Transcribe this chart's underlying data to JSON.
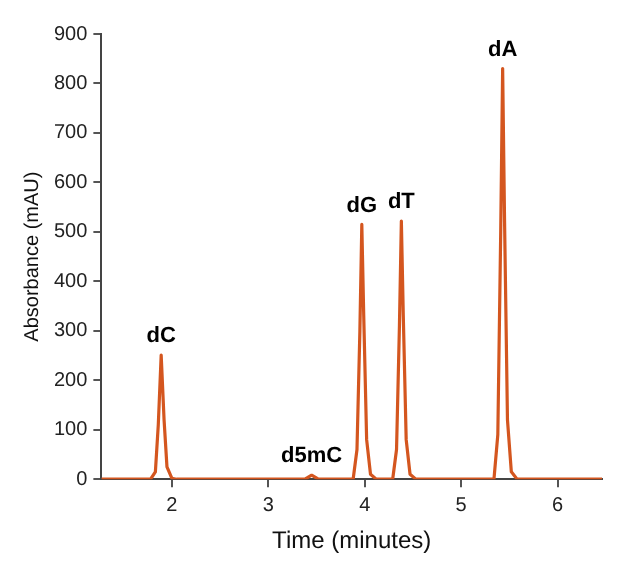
{
  "chart_data": {
    "type": "line",
    "xlabel": "Time (minutes)",
    "ylabel": "Absorbance (mAU)",
    "xlim": [
      1.27,
      6.46
    ],
    "xticks": [
      2,
      3,
      4,
      5,
      6
    ],
    "ylim": [
      0,
      900
    ],
    "yticks": [
      0,
      100,
      200,
      300,
      400,
      500,
      600,
      700,
      800,
      900
    ],
    "grid": false,
    "legend": false,
    "marker": "none",
    "line_style": "solid",
    "series": [
      {
        "color": "#d4561f",
        "x": [
          1.27,
          1.78,
          1.83,
          1.86,
          1.89,
          1.92,
          1.95,
          2.0,
          2.05,
          3.38,
          3.45,
          3.52,
          3.88,
          3.92,
          3.95,
          3.97,
          3.99,
          4.02,
          4.06,
          4.12,
          4.29,
          4.33,
          4.36,
          4.38,
          4.4,
          4.43,
          4.47,
          4.53,
          5.34,
          5.38,
          5.41,
          5.43,
          5.45,
          5.48,
          5.52,
          5.58,
          6.46
        ],
        "values": [
          0,
          0,
          15,
          110,
          251,
          120,
          25,
          2,
          0,
          0,
          8,
          0,
          0,
          60,
          300,
          515,
          330,
          80,
          10,
          0,
          0,
          60,
          310,
          522,
          330,
          80,
          10,
          0,
          0,
          90,
          500,
          830,
          520,
          120,
          15,
          0,
          0
        ]
      }
    ],
    "annotations": [
      {
        "text": "dC",
        "x": 1.89,
        "y": 251
      },
      {
        "text": "d5mC",
        "x": 3.45,
        "y": 8
      },
      {
        "text": "dG",
        "x": 3.97,
        "y": 515
      },
      {
        "text": "dT",
        "x": 4.38,
        "y": 522
      },
      {
        "text": "dA",
        "x": 5.43,
        "y": 830
      }
    ]
  }
}
